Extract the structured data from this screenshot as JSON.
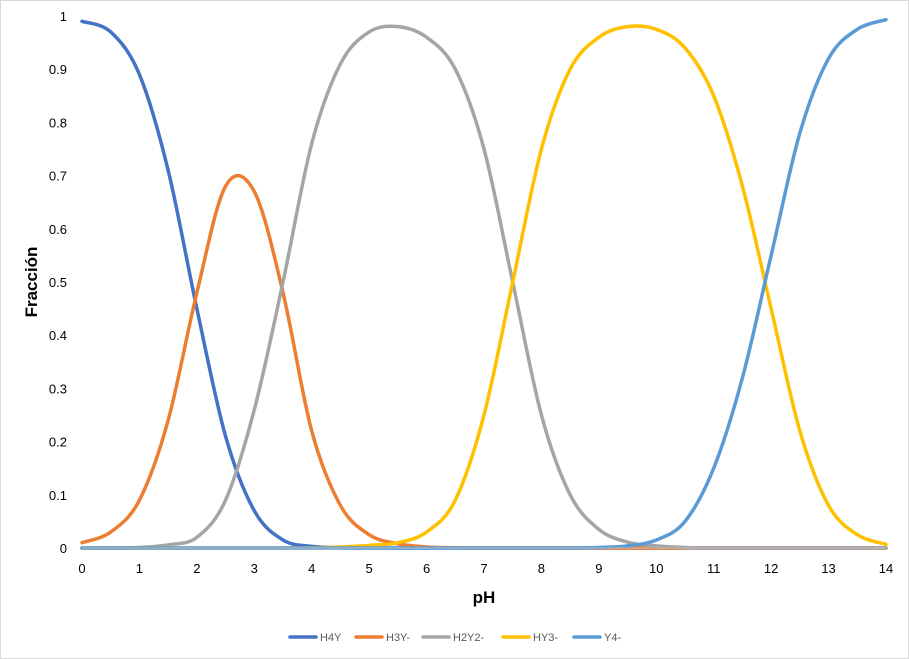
{
  "chart_data": {
    "type": "line",
    "xlabel": "pH",
    "ylabel": "Fracción",
    "xlim": [
      0,
      14
    ],
    "ylim": [
      0,
      1
    ],
    "x_ticks": [
      0,
      1,
      2,
      3,
      4,
      5,
      6,
      7,
      8,
      9,
      10,
      11,
      12,
      13,
      14
    ],
    "y_ticks": [
      0,
      0.1,
      0.2,
      0.3,
      0.4,
      0.5,
      0.6,
      0.7,
      0.8,
      0.9,
      1
    ],
    "y_tick_labels": [
      "0",
      "0.1",
      "0.2",
      "0.3",
      "0.4",
      "0.5",
      "0.6",
      "0.7",
      "0.8",
      "0.9",
      "1"
    ],
    "grid": false,
    "legend_position": "bottom",
    "x": [
      0,
      0.5,
      1,
      1.5,
      2,
      2.5,
      3,
      3.5,
      4,
      4.5,
      5,
      5.5,
      6,
      6.5,
      7,
      7.5,
      8,
      8.5,
      9,
      9.5,
      10,
      10.5,
      11,
      11.5,
      12,
      12.5,
      13,
      13.5,
      14
    ],
    "series": [
      {
        "name": "H4Y",
        "color": "#4472c4",
        "values": [
          0.99,
          0.97,
          0.89,
          0.71,
          0.45,
          0.21,
          0.07,
          0.015,
          0.003,
          0.0005,
          0,
          0,
          0,
          0,
          0,
          0,
          0,
          0,
          0,
          0,
          0,
          0,
          0,
          0,
          0,
          0,
          0,
          0,
          0
        ]
      },
      {
        "name": "H3Y-",
        "color": "#ed7d31",
        "values": [
          0.01,
          0.03,
          0.09,
          0.24,
          0.48,
          0.68,
          0.67,
          0.48,
          0.22,
          0.08,
          0.025,
          0.008,
          0.002,
          0.0005,
          0,
          0,
          0,
          0,
          0,
          0,
          0,
          0,
          0,
          0,
          0,
          0,
          0,
          0,
          0
        ]
      },
      {
        "name": "H2Y2-",
        "color": "#a5a5a5",
        "values": [
          0,
          0,
          0.001,
          0.006,
          0.02,
          0.09,
          0.26,
          0.5,
          0.76,
          0.91,
          0.97,
          0.98,
          0.96,
          0.9,
          0.75,
          0.5,
          0.25,
          0.1,
          0.035,
          0.011,
          0.004,
          0.001,
          0,
          0,
          0,
          0,
          0,
          0,
          0
        ]
      },
      {
        "name": "HY3-",
        "color": "#ffc000",
        "values": [
          0,
          0,
          0,
          0,
          0,
          0,
          0,
          0,
          0.0005,
          0.002,
          0.005,
          0.01,
          0.03,
          0.09,
          0.25,
          0.5,
          0.75,
          0.9,
          0.96,
          0.98,
          0.975,
          0.94,
          0.85,
          0.68,
          0.45,
          0.22,
          0.08,
          0.025,
          0.007
        ]
      },
      {
        "name": "Y4-",
        "color": "#5b9bd5",
        "values": [
          0,
          0,
          0,
          0,
          0,
          0,
          0,
          0,
          0,
          0,
          0,
          0,
          0,
          0,
          0,
          0,
          0,
          0,
          0.001,
          0.004,
          0.015,
          0.05,
          0.15,
          0.32,
          0.55,
          0.78,
          0.92,
          0.975,
          0.993
        ]
      }
    ]
  }
}
